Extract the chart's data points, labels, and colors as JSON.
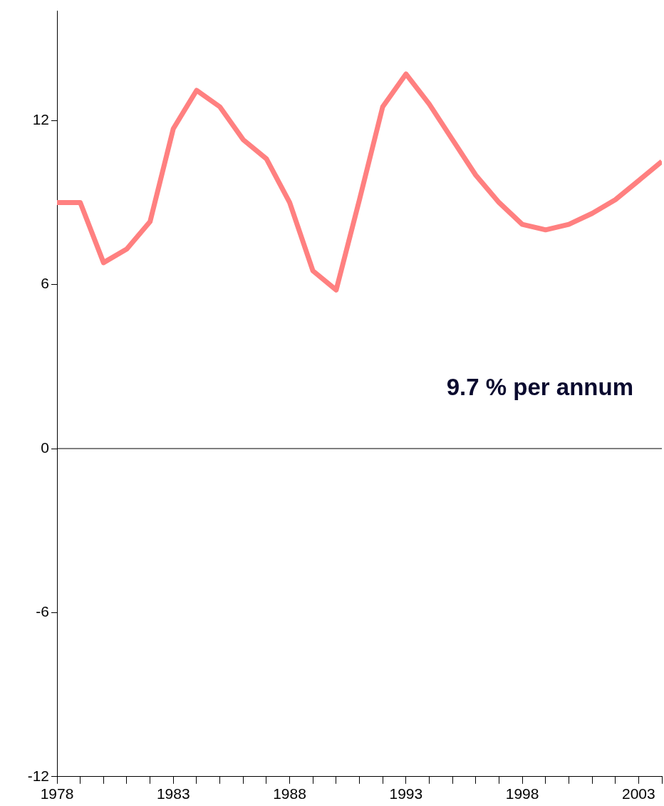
{
  "chart_data": {
    "type": "line",
    "x": [
      1978,
      1979,
      1980,
      1981,
      1982,
      1983,
      1984,
      1985,
      1986,
      1987,
      1988,
      1989,
      1990,
      1991,
      1992,
      1993,
      1994,
      1995,
      1996,
      1997,
      1998,
      1999,
      2000,
      2001,
      2002,
      2003,
      2004
    ],
    "series": [
      {
        "color": "#ff8080",
        "values": [
          9.0,
          9.0,
          6.8,
          7.3,
          8.3,
          11.7,
          13.1,
          12.5,
          11.3,
          10.6,
          9.0,
          6.5,
          5.8,
          9.1,
          12.5,
          13.7,
          12.6,
          11.3,
          10.0,
          9.0,
          8.2,
          8.0,
          8.2,
          8.6,
          9.1,
          9.8,
          10.5
        ]
      }
    ],
    "xlim": [
      1978,
      2004
    ],
    "xticks": [
      1978,
      {
        "value": 1979,
        "label": null
      },
      {
        "value": 1980,
        "label": null
      },
      {
        "value": 1981,
        "label": null
      },
      {
        "value": 1982,
        "label": null
      },
      1983,
      {
        "value": 1984,
        "label": null
      },
      {
        "value": 1985,
        "label": null
      },
      {
        "value": 1986,
        "label": null
      },
      {
        "value": 1987,
        "label": null
      },
      1988,
      {
        "value": 1989,
        "label": null
      },
      {
        "value": 1990,
        "label": null
      },
      {
        "value": 1991,
        "label": null
      },
      {
        "value": 1992,
        "label": null
      },
      1993,
      {
        "value": 1994,
        "label": null
      },
      {
        "value": 1995,
        "label": null
      },
      {
        "value": 1996,
        "label": null
      },
      {
        "value": 1997,
        "label": null
      },
      1998,
      {
        "value": 1999,
        "label": null
      },
      {
        "value": 2000,
        "label": null
      },
      {
        "value": 2001,
        "label": null
      },
      {
        "value": 2002,
        "label": null
      },
      2003,
      {
        "value": 2004,
        "label": null
      }
    ],
    "ylim": [
      -12,
      16
    ],
    "yticks": [
      -12,
      -6,
      0,
      6,
      12
    ],
    "ref_lines": [
      {
        "axis": "y",
        "value": 0,
        "color": "#000000"
      }
    ],
    "annotations": [
      "9.7 % per annum"
    ],
    "grid": false,
    "legend": false,
    "marker": "none",
    "line_style": "solid"
  }
}
